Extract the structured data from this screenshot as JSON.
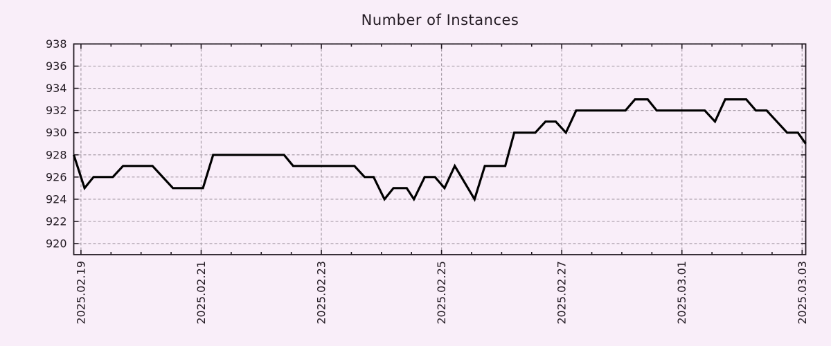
{
  "page": {
    "background_color": "#f9eef9",
    "text_color": "#221a22"
  },
  "chart_data": {
    "type": "line",
    "title": "Number of Instances",
    "legend": "none",
    "grid": {
      "on": true,
      "style": "dashed",
      "color": "#a79ca7"
    },
    "colors": {
      "background": "#f9eef9",
      "border": "#221a22",
      "line": "#000000",
      "text": "#221a22"
    },
    "x_axis": {
      "label": "",
      "unit": "days offset from first tick",
      "tick_labels": [
        "2025.02.19",
        "2025.02.21",
        "2025.02.23",
        "2025.02.25",
        "2025.02.27",
        "2025.03.01",
        "2025.03.03"
      ],
      "tick_days": [
        0,
        2,
        4,
        6,
        8,
        10,
        12
      ],
      "minor_tick_step_days": 0.5,
      "xlim_days": [
        -0.12,
        12.06
      ],
      "tick_label_rotation_deg": -90
    },
    "y_axis": {
      "label": "",
      "ticks": [
        920,
        922,
        924,
        926,
        928,
        930,
        932,
        934,
        936,
        938
      ],
      "ylim": [
        919,
        938
      ]
    },
    "series": [
      {
        "name": "instances",
        "color": "#000000",
        "points_day_value": [
          [
            -0.12,
            928
          ],
          [
            0.06,
            925
          ],
          [
            0.21,
            926
          ],
          [
            0.53,
            926
          ],
          [
            0.7,
            927
          ],
          [
            1.19,
            927
          ],
          [
            1.53,
            925
          ],
          [
            2.03,
            925
          ],
          [
            2.2,
            928
          ],
          [
            3.38,
            928
          ],
          [
            3.53,
            927
          ],
          [
            4.55,
            927
          ],
          [
            4.72,
            926
          ],
          [
            4.87,
            926
          ],
          [
            5.05,
            924
          ],
          [
            5.2,
            925
          ],
          [
            5.42,
            925
          ],
          [
            5.54,
            924
          ],
          [
            5.72,
            926
          ],
          [
            5.89,
            926
          ],
          [
            6.05,
            925
          ],
          [
            6.22,
            927
          ],
          [
            6.55,
            924
          ],
          [
            6.72,
            927
          ],
          [
            7.06,
            927
          ],
          [
            7.21,
            930
          ],
          [
            7.56,
            930
          ],
          [
            7.73,
            931
          ],
          [
            7.9,
            931
          ],
          [
            8.07,
            930
          ],
          [
            8.24,
            932
          ],
          [
            9.06,
            932
          ],
          [
            9.22,
            933
          ],
          [
            9.43,
            933
          ],
          [
            9.58,
            932
          ],
          [
            10.38,
            932
          ],
          [
            10.55,
            931
          ],
          [
            10.72,
            933
          ],
          [
            11.07,
            933
          ],
          [
            11.23,
            932
          ],
          [
            11.41,
            932
          ],
          [
            11.75,
            930
          ],
          [
            11.93,
            930
          ],
          [
            12.06,
            929
          ]
        ]
      }
    ]
  }
}
